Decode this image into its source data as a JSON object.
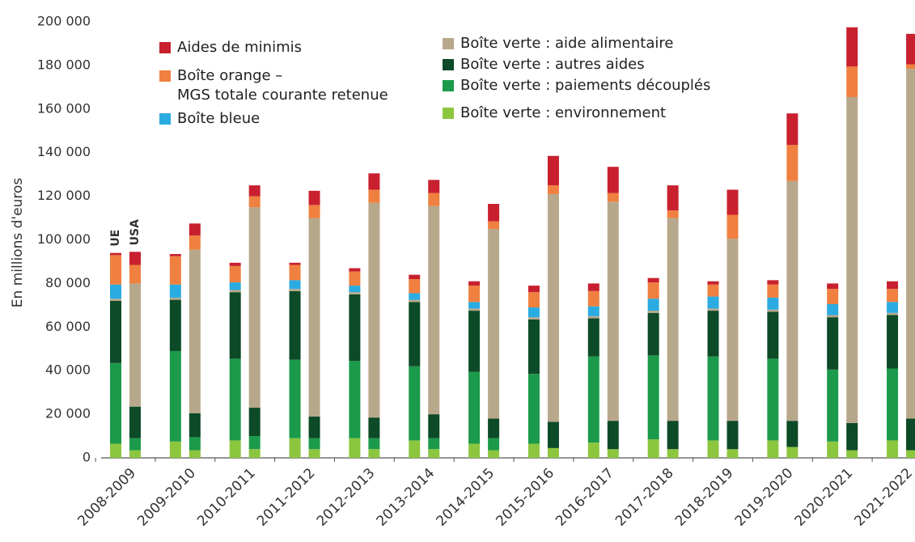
{
  "chart_data": {
    "type": "bar",
    "y_label": "En millions d'euros",
    "groups": [
      "UE",
      "USA"
    ],
    "categories": [
      "2008-2009",
      "2009-2010",
      "2010-2011",
      "2011-2012",
      "2012-2013",
      "2013-2014",
      "2014-2015",
      "2015-2016",
      "2016-2017",
      "2017-2018",
      "2018-2019",
      "2019-2020",
      "2020-2021",
      "2021-2022"
    ],
    "series": [
      {
        "name": "Boîte verte : environnement",
        "color": "#8cc63f",
        "values": [
          [
            6500,
            3500
          ],
          [
            7500,
            3500
          ],
          [
            8000,
            4000
          ],
          [
            9000,
            4000
          ],
          [
            9000,
            4000
          ],
          [
            8000,
            4000
          ],
          [
            6500,
            3500
          ],
          [
            6500,
            4500
          ],
          [
            7000,
            4000
          ],
          [
            8500,
            4000
          ],
          [
            8000,
            4000
          ],
          [
            8000,
            5000
          ],
          [
            7500,
            3500
          ],
          [
            8000,
            3500
          ]
        ]
      },
      {
        "name": "Boîte verte : paiements découplés",
        "color": "#1c9a4b",
        "values": [
          [
            37000,
            5500
          ],
          [
            41500,
            6000
          ],
          [
            37500,
            6000
          ],
          [
            36000,
            5000
          ],
          [
            35500,
            5000
          ],
          [
            34000,
            5000
          ],
          [
            33000,
            5500
          ],
          [
            32000,
            0
          ],
          [
            39500,
            0
          ],
          [
            38500,
            0
          ],
          [
            38500,
            0
          ],
          [
            37500,
            0
          ],
          [
            33000,
            0
          ],
          [
            33000,
            0
          ]
        ]
      },
      {
        "name": "Boîte verte : autres aides",
        "color": "#0d4a27",
        "values": [
          [
            28500,
            14500
          ],
          [
            23500,
            11000
          ],
          [
            30500,
            13000
          ],
          [
            31500,
            10000
          ],
          [
            30500,
            9500
          ],
          [
            29500,
            11000
          ],
          [
            28000,
            9000
          ],
          [
            25000,
            12000
          ],
          [
            17500,
            13000
          ],
          [
            19500,
            13000
          ],
          [
            21000,
            13000
          ],
          [
            21500,
            12000
          ],
          [
            24000,
            12500
          ],
          [
            24500,
            14500
          ]
        ]
      },
      {
        "name": "Boîte verte : aide alimentaire",
        "color": "#b8a88b",
        "values": [
          [
            1000,
            56500
          ],
          [
            1000,
            75000
          ],
          [
            1000,
            92000
          ],
          [
            1000,
            91000
          ],
          [
            1000,
            98500
          ],
          [
            1000,
            95500
          ],
          [
            1000,
            87000
          ],
          [
            1000,
            104500
          ],
          [
            1000,
            100500
          ],
          [
            1000,
            93000
          ],
          [
            1000,
            83500
          ],
          [
            1000,
            110000
          ],
          [
            1000,
            149500
          ],
          [
            1000,
            160500
          ]
        ]
      },
      {
        "name": "Boîte bleue",
        "color": "#2aabe2",
        "values": [
          [
            6500,
            0
          ],
          [
            6000,
            0
          ],
          [
            3500,
            0
          ],
          [
            4000,
            0
          ],
          [
            3000,
            0
          ],
          [
            3000,
            0
          ],
          [
            3000,
            0
          ],
          [
            4500,
            0
          ],
          [
            4500,
            0
          ],
          [
            5500,
            0
          ],
          [
            5500,
            0
          ],
          [
            5500,
            0
          ],
          [
            5000,
            0
          ],
          [
            5000,
            0
          ]
        ]
      },
      {
        "name": "Boîte orange –\nMGS totale courante retenue",
        "color": "#f0803f",
        "values": [
          [
            13500,
            8500
          ],
          [
            13000,
            6500
          ],
          [
            7500,
            5000
          ],
          [
            7000,
            6000
          ],
          [
            6500,
            6000
          ],
          [
            6500,
            6000
          ],
          [
            7500,
            3500
          ],
          [
            7000,
            4000
          ],
          [
            7000,
            4000
          ],
          [
            7500,
            3500
          ],
          [
            5500,
            11000
          ],
          [
            6000,
            16500
          ],
          [
            7000,
            14000
          ],
          [
            6000,
            2000
          ]
        ]
      },
      {
        "name": "Aides de minimis",
        "color": "#c8202f",
        "values": [
          [
            1000,
            6000
          ],
          [
            1000,
            5500
          ],
          [
            1500,
            5000
          ],
          [
            1000,
            6500
          ],
          [
            1500,
            7500
          ],
          [
            2000,
            6000
          ],
          [
            2000,
            8000
          ],
          [
            3000,
            13500
          ],
          [
            3500,
            12000
          ],
          [
            2000,
            11500
          ],
          [
            1500,
            11500
          ],
          [
            2000,
            14500
          ],
          [
            2500,
            18000
          ],
          [
            3500,
            14000
          ]
        ]
      }
    ],
    "ylim": [
      0,
      200000
    ],
    "yticks": [
      0,
      {
        "value": 20000,
        "label": "20 000"
      },
      {
        "value": 40000,
        "label": "40 000"
      },
      {
        "value": 60000,
        "label": "60 000"
      },
      {
        "value": 80000,
        "label": "80 000"
      },
      {
        "value": 100000,
        "label": "100 000"
      },
      {
        "value": 120000,
        "label": "120 000"
      },
      {
        "value": 140000,
        "label": "140 000"
      },
      {
        "value": 160000,
        "label": "160 000"
      },
      {
        "value": 180000,
        "label": "180 000"
      },
      {
        "value": 200000,
        "label": "200 000"
      }
    ]
  }
}
